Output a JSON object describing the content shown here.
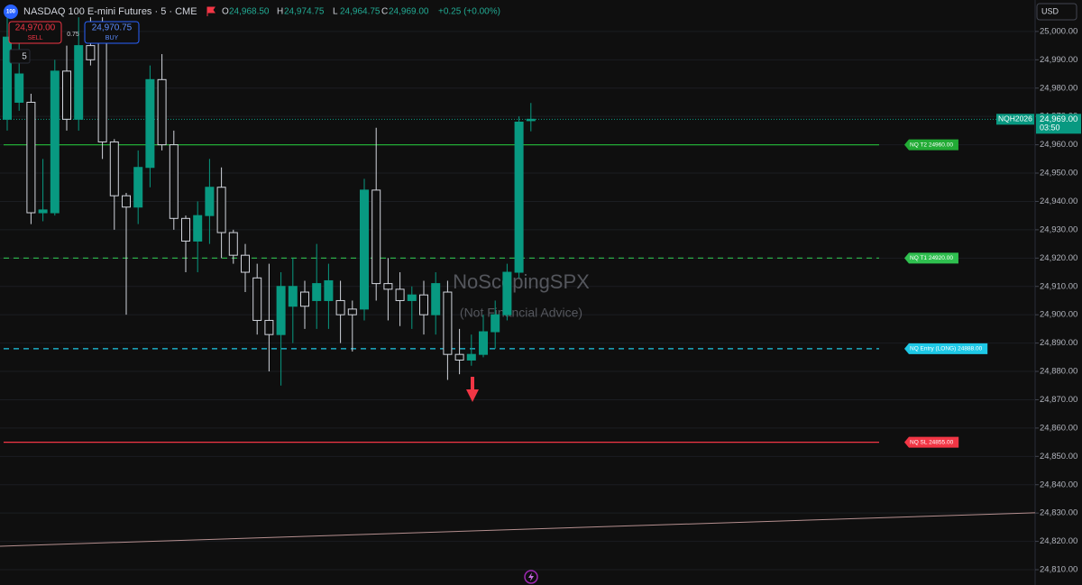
{
  "header": {
    "logo": "100",
    "symbol": "NASDAQ 100 E-mini Futures · 5 · CME",
    "ohlc": [
      {
        "key": "O",
        "value": "24,968.50"
      },
      {
        "key": "H",
        "value": "24,974.75"
      },
      {
        "key": "L",
        "value": "24,964.75"
      },
      {
        "key": "C",
        "value": "24,969.00"
      }
    ],
    "change": "+0.25 (+0.00%)",
    "sell": {
      "price": "24,970.00",
      "label": "SELL"
    },
    "spread": "0.75",
    "buy": {
      "price": "24,970.75",
      "label": "BUY"
    },
    "interval": "5",
    "currency": "USD"
  },
  "chart_data": {
    "type": "candlestick",
    "open": [
      24969,
      24975,
      24975,
      24936,
      24936,
      24986,
      24969,
      24995,
      25000,
      24961,
      24942,
      24938,
      24952,
      24983,
      24960,
      24934,
      24926,
      24935,
      24945,
      24929,
      24921,
      24913,
      24898,
      24893,
      24903,
      24908,
      24905,
      24905,
      24905,
      24902,
      24902,
      24944,
      24911,
      24909,
      24905,
      24907,
      24900,
      24908,
      24886,
      24884,
      24886,
      24894,
      24900,
      24915,
      24968.5
    ],
    "high": [
      25005,
      25003,
      24978,
      24955,
      24990,
      24995,
      25005,
      25005,
      25005,
      24962,
      24943,
      24958,
      24988,
      24992,
      24965,
      24935,
      24940,
      24955,
      24952,
      24930,
      24925,
      24918,
      24918,
      24915,
      24920,
      24912,
      24925,
      24918,
      24912,
      24905,
      24948,
      24966,
      24920,
      24915,
      24910,
      24912,
      24915,
      24912,
      24895,
      24893,
      24900,
      24905,
      24918,
      24970,
      24974.75
    ],
    "low": [
      24965,
      24972,
      24932,
      24933,
      24935,
      24965,
      24965,
      24988,
      24955,
      24930,
      24900,
      24932,
      24945,
      24958,
      24930,
      24915,
      24915,
      24925,
      24920,
      24918,
      24908,
      24893,
      24880,
      24875,
      24890,
      24895,
      24895,
      24895,
      24890,
      24887,
      24898,
      24905,
      24898,
      24896,
      24895,
      24893,
      24893,
      24877,
      24879,
      24882,
      24885,
      24888,
      24898,
      24913,
      24964.75
    ],
    "close": [
      24998,
      24985,
      24936,
      24937,
      24986,
      24969,
      24995,
      24990,
      24961,
      24942,
      24938,
      24952,
      24983,
      24960,
      24934,
      24926,
      24935,
      24945,
      24929,
      24921,
      24915,
      24898,
      24893,
      24910,
      24910,
      24903,
      24911,
      24912,
      24900,
      24900,
      24944,
      24911,
      24909,
      24905,
      24907,
      24900,
      24911,
      24886,
      24884,
      24886,
      24894,
      24900,
      24915,
      24968,
      24969
    ],
    "up_color": "#089981",
    "down_color": "#d1d4dc",
    "ylim": [
      24804.6,
      25011.1
    ],
    "yticks": [
      {
        "value": 25000,
        "label": "25,000.00"
      },
      {
        "value": 24990,
        "label": "24,990.00"
      },
      {
        "value": 24980,
        "label": "24,980.00"
      },
      {
        "value": 24970,
        "label": "24,970.00"
      },
      {
        "value": 24960,
        "label": "24,960.00"
      },
      {
        "value": 24950,
        "label": "24,950.00"
      },
      {
        "value": 24940,
        "label": "24,940.00"
      },
      {
        "value": 24930,
        "label": "24,930.00"
      },
      {
        "value": 24920,
        "label": "24,920.00"
      },
      {
        "value": 24910,
        "label": "24,910.00"
      },
      {
        "value": 24900,
        "label": "24,900.00"
      },
      {
        "value": 24890,
        "label": "24,890.00"
      },
      {
        "value": 24880,
        "label": "24,880.00"
      },
      {
        "value": 24870,
        "label": "24,870.00"
      },
      {
        "value": 24860,
        "label": "24,860.00"
      },
      {
        "value": 24850,
        "label": "24,850.00"
      },
      {
        "value": 24840,
        "label": "24,840.00"
      },
      {
        "value": 24830,
        "label": "24,830.00"
      },
      {
        "value": 24820,
        "label": "24,820.00"
      },
      {
        "value": 24810,
        "label": "24,810.00"
      }
    ],
    "grid": true,
    "levels": [
      {
        "label": "NQ T2 24960.00",
        "value": 24960,
        "color": "#22ab35",
        "dashed": false
      },
      {
        "label": "NQ T1 24920.00",
        "value": 24920,
        "color": "#2fbf4f",
        "dashed": true
      },
      {
        "label": "NQ Entry (LONG) 24888.00",
        "value": 24888,
        "color": "#1ec8e6",
        "dashed": true
      },
      {
        "label": "NQ SL 24855.00",
        "value": 24855,
        "color": "#f23645",
        "dashed": false
      }
    ],
    "trendline": {
      "values": [
        24818.3,
        24830.1
      ],
      "color": "#b58f8f"
    },
    "last_price": {
      "value": 24969,
      "label": "24,969.00",
      "ticker": "NQH2026",
      "countdown": "03:50",
      "color": "#089981"
    },
    "watermark": {
      "title": "NoScopingSPX",
      "subtitle": "(Not Financial Advice)"
    }
  }
}
